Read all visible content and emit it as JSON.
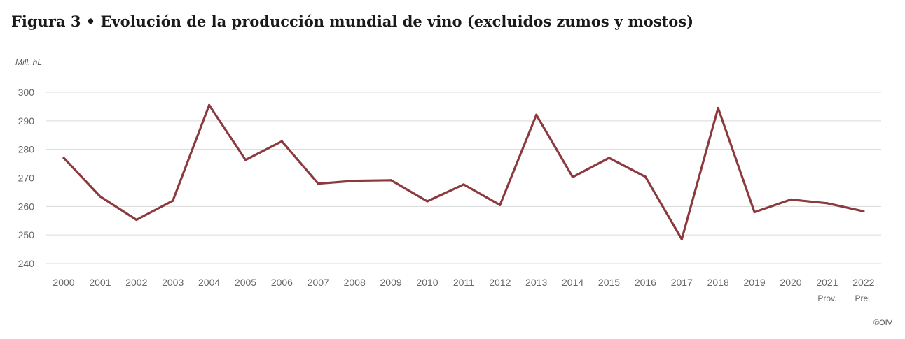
{
  "chart_data": {
    "type": "line",
    "title": "Figura 3 • Evolución de la producción mundial de vino (excluidos zumos y mostos)",
    "ylabel": "Mill. hL",
    "xlabel": "",
    "ylim": [
      240,
      300
    ],
    "yticks": [
      240,
      250,
      260,
      270,
      280,
      290,
      300
    ],
    "grid": true,
    "categories": [
      "2000",
      "2001",
      "2002",
      "2003",
      "2004",
      "2005",
      "2006",
      "2007",
      "2008",
      "2009",
      "2010",
      "2011",
      "2012",
      "2013",
      "2014",
      "2015",
      "2016",
      "2017",
      "2018",
      "2019",
      "2020",
      "2021",
      "2022"
    ],
    "category_sublabels": {
      "2021": "Prov.",
      "2022": "Prel."
    },
    "series": [
      {
        "name": "Producción mundial de vino",
        "color": "#8b3a3e",
        "values": [
          277.0,
          263.5,
          255.3,
          262.0,
          295.5,
          276.3,
          282.8,
          268.0,
          269.0,
          269.2,
          261.8,
          267.7,
          260.5,
          292.1,
          270.3,
          277.0,
          270.4,
          248.5,
          294.5,
          258.0,
          262.4,
          261.1,
          258.3
        ]
      }
    ]
  },
  "credit": "©OIV"
}
